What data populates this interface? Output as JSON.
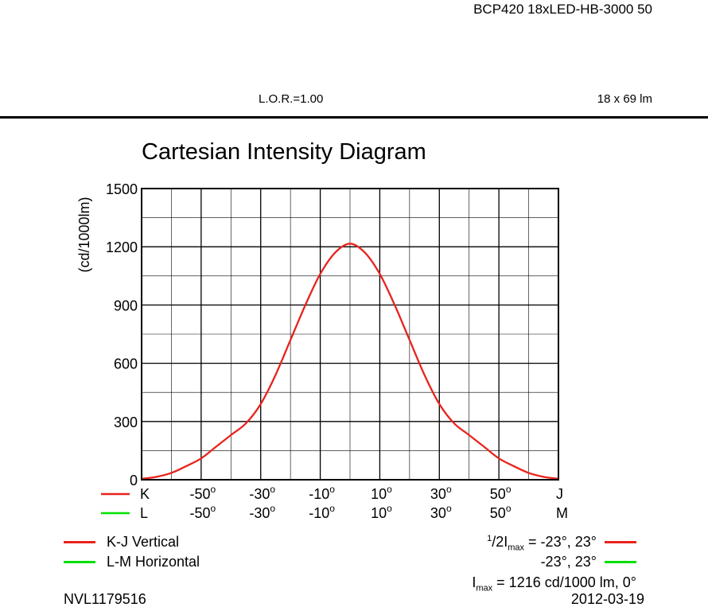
{
  "header": {
    "product": "BCP420 18xLED-HB-3000 50",
    "lor": "L.O.R.=1.00",
    "lumens": "18 x 69 lm"
  },
  "chart_data": {
    "type": "line",
    "title": "Cartesian Intensity Diagram",
    "ylabel": "(cd/1000lm)",
    "xlim": [
      -70,
      70
    ],
    "ylim": [
      0,
      1500
    ],
    "yticks": [
      "0",
      "300",
      "600",
      "900",
      "1200",
      "1500"
    ],
    "grid": true,
    "x_axis_rows": [
      {
        "series": "K-J Vertical",
        "start": "K",
        "end": "J",
        "ticks": [
          "-50",
          "-30",
          "-10",
          "10",
          "30",
          "50"
        ]
      },
      {
        "series": "L-M Horizontal",
        "start": "L",
        "end": "M",
        "ticks": [
          "-50",
          "-30",
          "-10",
          "10",
          "30",
          "50"
        ]
      }
    ],
    "degree_symbol": "o",
    "series": [
      {
        "name": "K-J Vertical",
        "color": "#e8231c",
        "x": [
          -70,
          -65,
          -60,
          -55,
          -50,
          -45,
          -40,
          -35,
          -30,
          -25,
          -20,
          -15,
          -10,
          -5,
          0,
          5,
          10,
          15,
          20,
          25,
          30,
          35,
          40,
          45,
          50,
          55,
          60,
          65,
          70
        ],
        "y": [
          5,
          15,
          35,
          70,
          110,
          170,
          230,
          290,
          390,
          540,
          720,
          900,
          1060,
          1170,
          1216,
          1170,
          1060,
          900,
          720,
          540,
          390,
          290,
          230,
          170,
          110,
          70,
          35,
          15,
          5
        ]
      },
      {
        "name": "L-M Horizontal",
        "color": "#00e000",
        "x": [],
        "y": []
      }
    ]
  },
  "legend": {
    "kj_label": "K-J Vertical",
    "lm_label": "L-M Horizontal"
  },
  "info": {
    "half_sup": "1",
    "half_main": "/2I",
    "half_sub": "max",
    "half_kj_values": " = -23°,   23°",
    "half_lm_values": "-23°,   23°",
    "imax_main": "I",
    "imax_sub": "max",
    "imax_values": " = 1216 cd/1000 lm, 0°"
  },
  "footer": {
    "number": "NVL1179516",
    "date": "2012-03-19"
  }
}
